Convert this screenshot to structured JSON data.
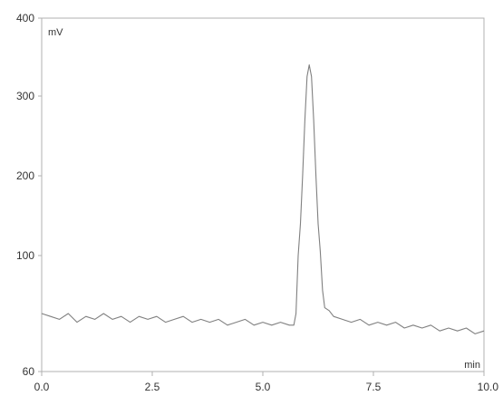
{
  "chart_data": {
    "type": "line",
    "title": "",
    "xlabel": "min",
    "ylabel": "mV",
    "xlim": [
      0.0,
      10.0
    ],
    "ylim": [
      60,
      400
    ],
    "x_ticks": [
      0.0,
      2.5,
      5.0,
      7.5,
      10.0
    ],
    "x_tick_labels": [
      "0.0",
      "2.5",
      "5.0",
      "7.5",
      "10.0"
    ],
    "y_ticks": [
      60,
      100,
      200,
      300,
      400
    ],
    "y_tick_labels": [
      "60",
      "100",
      "200",
      "300",
      "400"
    ],
    "grid": false,
    "legend": "none",
    "colors": {
      "trace": "#808080",
      "axis": "#b0b0b0",
      "text": "#333333"
    },
    "series": [
      {
        "values": [
          [
            0.0,
            80
          ],
          [
            0.2,
            79
          ],
          [
            0.4,
            78
          ],
          [
            0.6,
            80
          ],
          [
            0.8,
            77
          ],
          [
            1.0,
            79
          ],
          [
            1.2,
            78
          ],
          [
            1.4,
            80
          ],
          [
            1.6,
            78
          ],
          [
            1.8,
            79
          ],
          [
            2.0,
            77
          ],
          [
            2.2,
            79
          ],
          [
            2.4,
            78
          ],
          [
            2.6,
            79
          ],
          [
            2.8,
            77
          ],
          [
            3.0,
            78
          ],
          [
            3.2,
            79
          ],
          [
            3.4,
            77
          ],
          [
            3.6,
            78
          ],
          [
            3.8,
            77
          ],
          [
            4.0,
            78
          ],
          [
            4.2,
            76
          ],
          [
            4.4,
            77
          ],
          [
            4.6,
            78
          ],
          [
            4.8,
            76
          ],
          [
            5.0,
            77
          ],
          [
            5.2,
            76
          ],
          [
            5.4,
            77
          ],
          [
            5.6,
            76
          ],
          [
            5.7,
            76
          ],
          [
            5.75,
            80
          ],
          [
            5.8,
            100
          ],
          [
            5.85,
            140
          ],
          [
            5.9,
            200
          ],
          [
            5.95,
            270
          ],
          [
            6.0,
            325
          ],
          [
            6.05,
            340
          ],
          [
            6.1,
            325
          ],
          [
            6.15,
            270
          ],
          [
            6.2,
            200
          ],
          [
            6.25,
            140
          ],
          [
            6.3,
            105
          ],
          [
            6.35,
            88
          ],
          [
            6.4,
            82
          ],
          [
            6.5,
            81
          ],
          [
            6.6,
            79
          ],
          [
            6.8,
            78
          ],
          [
            7.0,
            77
          ],
          [
            7.2,
            78
          ],
          [
            7.4,
            76
          ],
          [
            7.6,
            77
          ],
          [
            7.8,
            76
          ],
          [
            8.0,
            77
          ],
          [
            8.2,
            75
          ],
          [
            8.4,
            76
          ],
          [
            8.6,
            75
          ],
          [
            8.8,
            76
          ],
          [
            9.0,
            74
          ],
          [
            9.2,
            75
          ],
          [
            9.4,
            74
          ],
          [
            9.6,
            75
          ],
          [
            9.8,
            73
          ],
          [
            10.0,
            74
          ]
        ]
      }
    ]
  }
}
